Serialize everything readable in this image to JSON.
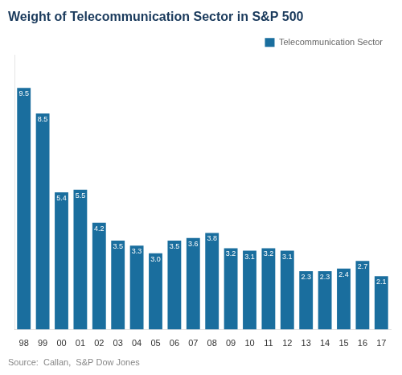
{
  "chart_data": {
    "type": "bar",
    "title": "Weight of Telecommunication Sector in S&P 500",
    "categories": [
      "98",
      "99",
      "00",
      "01",
      "02",
      "03",
      "04",
      "05",
      "06",
      "07",
      "08",
      "09",
      "10",
      "11",
      "12",
      "13",
      "14",
      "15",
      "16",
      "17"
    ],
    "series": [
      {
        "name": "Telecommunication Sector",
        "color": "#1a6e9e",
        "values": [
          9.5,
          8.5,
          5.4,
          5.5,
          4.2,
          3.5,
          3.3,
          3.0,
          3.5,
          3.6,
          3.8,
          3.2,
          3.1,
          3.2,
          3.1,
          2.3,
          2.3,
          2.4,
          2.7,
          2.1
        ],
        "value_labels": [
          "9.5",
          "8.5",
          "5.4",
          "5.5",
          "4.2",
          "3.5",
          "3.3",
          "3.0",
          "3.5",
          "3.6",
          "3.8",
          "3.2",
          "3.1",
          "3.2",
          "3.1",
          "2.3",
          "2.3",
          "2.4",
          "2.7",
          "2.1"
        ]
      }
    ],
    "ylim": [
      0,
      10.8
    ],
    "grid": false,
    "legend": "upper right",
    "data_labels": true,
    "tick_labels": "x",
    "annotations": [
      "Source:  Callan,  S&P Dow Jones"
    ]
  }
}
